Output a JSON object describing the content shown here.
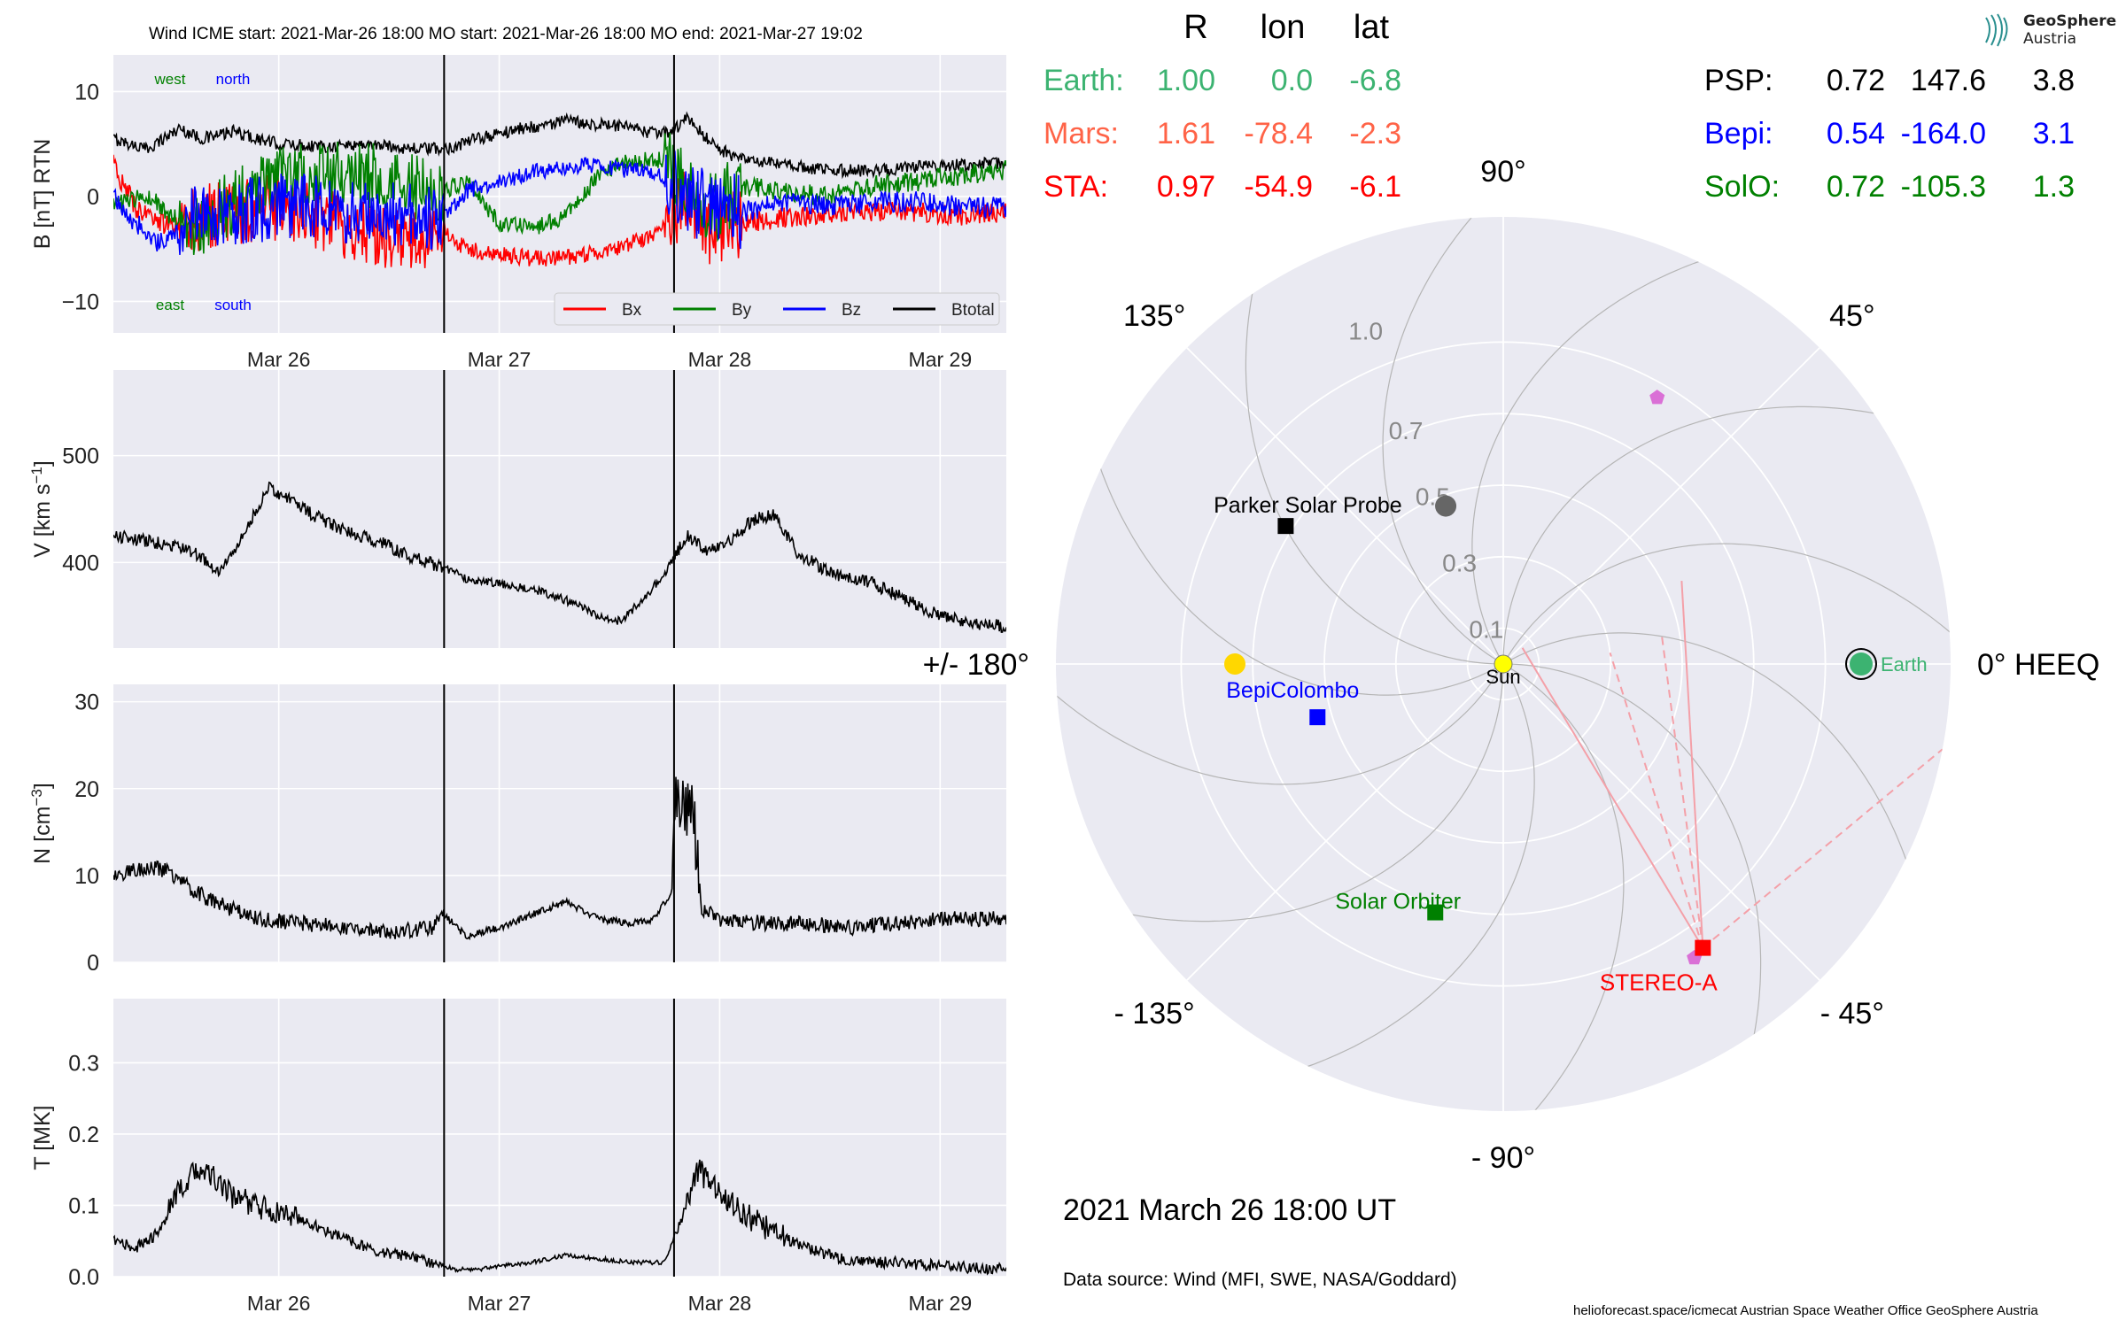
{
  "header": {
    "title": "Wind    ICME start: 2021-Mar-26 18:00   MO start: 2021-Mar-26 18:00   MO end: 2021-Mar-27 19:02",
    "timestamp": "2021 March 26  18:00 UT",
    "data_source": "Data source: Wind (MFI, SWE, NASA/Goddard)",
    "credits": "helioforecast.space/icmecat   Austrian Space Weather Office   GeoSphere Austria",
    "logo_line1": "GeoSphere",
    "logo_line2": "Austria"
  },
  "position_table": {
    "columns": [
      "R",
      "lon",
      "lat"
    ],
    "rows_left": [
      {
        "name": "Earth:",
        "R": "1.00",
        "lon": "0.0",
        "lat": "-6.8",
        "color": "#3cb371"
      },
      {
        "name": "Mars:",
        "R": "1.61",
        "lon": "-78.4",
        "lat": "-2.3",
        "color": "#ff6347"
      },
      {
        "name": "STA:",
        "R": "0.97",
        "lon": "-54.9",
        "lat": "-6.1",
        "color": "#ff0000"
      }
    ],
    "rows_right": [
      {
        "name": "PSP:",
        "R": "0.72",
        "lon": "147.6",
        "lat": "3.8",
        "color": "#000000"
      },
      {
        "name": "Bepi:",
        "R": "0.54",
        "lon": "-164.0",
        "lat": "3.1",
        "color": "#0000ff"
      },
      {
        "name": "SolO:",
        "R": "0.72",
        "lon": "-105.3",
        "lat": "1.3",
        "color": "#008000"
      }
    ]
  },
  "chart_data": [
    {
      "type": "line",
      "ylabel": "B [nT] RTN",
      "ylim": [
        -13,
        13.5
      ],
      "yticks": [
        -10,
        0,
        10
      ],
      "xlim_days": [
        25.25,
        29.3
      ],
      "xticks": [
        {
          "day": 26,
          "label": "Mar 26"
        },
        {
          "day": 27,
          "label": "Mar 27"
        },
        {
          "day": 28,
          "label": "Mar 28"
        },
        {
          "day": 29,
          "label": "Mar 29"
        }
      ],
      "event_lines_days": [
        26.75,
        27.793
      ],
      "annotations": [
        {
          "text": "west",
          "color": "#008000"
        },
        {
          "text": "north",
          "color": "#0000ff"
        },
        {
          "text": "east",
          "color": "#008000"
        },
        {
          "text": "south",
          "color": "#0000ff"
        }
      ],
      "legend": {
        "position": "lower right",
        "entries": [
          {
            "name": "Bx",
            "color": "#ff0000"
          },
          {
            "name": "By",
            "color": "#008000"
          },
          {
            "name": "Bz",
            "color": "#0000ff"
          },
          {
            "name": "Btotal",
            "color": "#000000"
          }
        ]
      },
      "series": [
        {
          "name": "Btotal",
          "color": "#000000",
          "x": [
            25.25,
            25.4,
            25.55,
            25.65,
            25.72,
            25.8,
            25.9,
            26.0,
            26.2,
            26.4,
            26.6,
            26.75,
            26.9,
            27.0,
            27.1,
            27.2,
            27.3,
            27.4,
            27.5,
            27.6,
            27.7,
            27.79,
            27.85,
            27.92,
            28.0,
            28.1,
            28.3,
            28.5,
            28.7,
            28.9,
            29.1,
            29.3
          ],
          "y": [
            5.5,
            4.5,
            6.5,
            5.5,
            5.8,
            6.2,
            5.5,
            5.0,
            4.8,
            5.0,
            4.6,
            4.5,
            5.5,
            6.0,
            6.5,
            6.8,
            7.2,
            7.0,
            6.8,
            6.5,
            6.0,
            6.2,
            7.5,
            6.0,
            4.5,
            3.5,
            3.0,
            2.5,
            2.5,
            2.8,
            3.0,
            3.2
          ]
        },
        {
          "name": "Bx",
          "color": "#ff0000",
          "x": [
            25.25,
            25.35,
            25.45,
            25.55,
            25.65,
            25.8,
            26.0,
            26.2,
            26.4,
            26.6,
            26.75,
            26.85,
            27.0,
            27.2,
            27.4,
            27.6,
            27.75,
            27.85,
            27.95,
            28.1,
            28.3,
            28.5,
            28.7,
            28.9,
            29.1,
            29.3
          ],
          "y": [
            3.0,
            -1.0,
            -2.5,
            -3.0,
            -2.0,
            -1.5,
            -1.0,
            -2.0,
            -3.5,
            -4.0,
            -3.5,
            -5.0,
            -5.5,
            -6.0,
            -5.5,
            -4.5,
            -3.0,
            0.0,
            -3.0,
            -2.5,
            -2.0,
            -1.5,
            -1.5,
            -1.5,
            -1.8,
            -1.5
          ]
        },
        {
          "name": "By",
          "color": "#008000",
          "x": [
            25.25,
            25.4,
            25.55,
            25.65,
            25.75,
            25.9,
            26.0,
            26.15,
            26.3,
            26.45,
            26.6,
            26.75,
            26.85,
            27.0,
            27.15,
            27.3,
            27.45,
            27.6,
            27.75,
            27.85,
            27.95,
            28.1,
            28.3,
            28.5,
            28.7,
            28.9,
            29.1,
            29.3
          ],
          "y": [
            -1.0,
            0.0,
            -2.5,
            -3.0,
            -1.0,
            0.5,
            1.5,
            2.5,
            2.0,
            2.0,
            1.0,
            0.5,
            1.5,
            -2.5,
            -3.0,
            -2.0,
            2.0,
            3.5,
            3.5,
            1.0,
            -1.5,
            1.0,
            0.5,
            0.0,
            1.0,
            1.5,
            2.0,
            2.5
          ]
        },
        {
          "name": "Bz",
          "color": "#0000ff",
          "x": [
            25.25,
            25.35,
            25.45,
            25.55,
            25.65,
            25.8,
            26.0,
            26.2,
            26.4,
            26.6,
            26.75,
            26.85,
            27.0,
            27.2,
            27.4,
            27.6,
            27.75,
            27.85,
            27.95,
            28.1,
            28.3,
            28.5,
            28.7,
            28.9,
            29.1,
            29.3
          ],
          "y": [
            0.0,
            -2.5,
            -4.5,
            -3.5,
            -1.5,
            -1.5,
            -1.0,
            -1.0,
            -1.5,
            -1.5,
            -2.0,
            0.5,
            1.5,
            2.5,
            3.0,
            2.5,
            2.0,
            0.0,
            -1.0,
            -1.5,
            -0.5,
            -1.0,
            -0.5,
            -0.5,
            -1.0,
            -1.0
          ]
        }
      ]
    },
    {
      "type": "line",
      "ylabel": "V [km s$^{-1}$]",
      "ylim": [
        320,
        580
      ],
      "yticks": [
        400,
        500
      ],
      "xlim_days": [
        25.25,
        29.3
      ],
      "event_lines_days": [
        26.75,
        27.793
      ],
      "series": [
        {
          "name": "V",
          "color": "#000000",
          "x": [
            25.25,
            25.4,
            25.55,
            25.65,
            25.72,
            25.8,
            25.9,
            25.95,
            26.05,
            26.15,
            26.3,
            26.45,
            26.6,
            26.75,
            26.85,
            27.0,
            27.15,
            27.3,
            27.45,
            27.55,
            27.65,
            27.75,
            27.85,
            27.95,
            28.05,
            28.15,
            28.25,
            28.35,
            28.5,
            28.7,
            28.9,
            29.0,
            29.1,
            29.3
          ],
          "y": [
            425,
            420,
            415,
            405,
            390,
            410,
            450,
            470,
            460,
            445,
            430,
            420,
            405,
            395,
            385,
            380,
            375,
            365,
            350,
            345,
            365,
            390,
            425,
            410,
            420,
            440,
            445,
            410,
            390,
            380,
            360,
            350,
            345,
            340
          ]
        }
      ]
    },
    {
      "type": "line",
      "ylabel": "N [cm$^{-3}$]",
      "ylim": [
        0,
        32
      ],
      "yticks": [
        0,
        10,
        20,
        30
      ],
      "xlim_days": [
        25.25,
        29.3
      ],
      "event_lines_days": [
        26.75,
        27.793
      ],
      "series": [
        {
          "name": "N",
          "color": "#000000",
          "x": [
            25.25,
            25.4,
            25.5,
            25.6,
            25.7,
            25.8,
            25.9,
            26.1,
            26.3,
            26.5,
            26.7,
            26.75,
            26.85,
            27.0,
            27.1,
            27.2,
            27.3,
            27.45,
            27.6,
            27.7,
            27.78,
            27.8,
            27.84,
            27.88,
            27.92,
            28.0,
            28.2,
            28.4,
            28.6,
            28.8,
            29.0,
            29.3
          ],
          "y": [
            10,
            11,
            10.5,
            8.5,
            7,
            6,
            5,
            4.5,
            4,
            3.5,
            4,
            5.5,
            3,
            4,
            5,
            6,
            7,
            5,
            4.5,
            5,
            8,
            20,
            18,
            17,
            6,
            5,
            4.5,
            4.5,
            4,
            4.5,
            5,
            5
          ]
        }
      ]
    },
    {
      "type": "line",
      "ylabel": "T [MK]",
      "ylim": [
        0,
        0.39
      ],
      "yticks": [
        0.0,
        0.1,
        0.2,
        0.3
      ],
      "xlim_days": [
        25.25,
        29.3
      ],
      "xticks": [
        {
          "day": 26,
          "label": "Mar 26"
        },
        {
          "day": 27,
          "label": "Mar 27"
        },
        {
          "day": 28,
          "label": "Mar 28"
        },
        {
          "day": 29,
          "label": "Mar 29"
        }
      ],
      "event_lines_days": [
        26.75,
        27.793
      ],
      "series": [
        {
          "name": "T",
          "color": "#000000",
          "x": [
            25.25,
            25.35,
            25.45,
            25.55,
            25.62,
            25.7,
            25.8,
            25.9,
            26.0,
            26.1,
            26.25,
            26.4,
            26.55,
            26.7,
            26.8,
            26.9,
            27.0,
            27.15,
            27.3,
            27.45,
            27.6,
            27.75,
            27.85,
            27.9,
            28.0,
            28.1,
            28.25,
            28.4,
            28.6,
            28.8,
            29.0,
            29.3
          ],
          "y": [
            0.05,
            0.04,
            0.06,
            0.12,
            0.15,
            0.14,
            0.11,
            0.1,
            0.09,
            0.08,
            0.06,
            0.04,
            0.03,
            0.02,
            0.01,
            0.01,
            0.015,
            0.02,
            0.03,
            0.025,
            0.02,
            0.02,
            0.1,
            0.15,
            0.12,
            0.09,
            0.06,
            0.04,
            0.02,
            0.02,
            0.015,
            0.01
          ]
        }
      ]
    },
    {
      "type": "scatter",
      "subtype": "polar",
      "angular_labels": [
        {
          "deg": 0,
          "text": "0° HEEQ"
        },
        {
          "deg": 45,
          "text": "45°"
        },
        {
          "deg": 90,
          "text": "90°"
        },
        {
          "deg": 135,
          "text": "135°"
        },
        {
          "deg": 180,
          "text": "+/- 180°"
        },
        {
          "deg": -135,
          "text": "- 135°"
        },
        {
          "deg": -90,
          "text": "- 90°"
        },
        {
          "deg": -45,
          "text": "- 45°"
        }
      ],
      "radial_ticks": [
        {
          "r": 0.1,
          "label": "0.1"
        },
        {
          "r": 0.3,
          "label": "0.3"
        },
        {
          "r": 0.5,
          "label": "0.5"
        },
        {
          "r": 0.7,
          "label": "0.7"
        },
        {
          "r": 1.0,
          "label": "1.0"
        }
      ],
      "radial_grid": [
        0.1,
        0.3,
        0.5,
        0.7,
        0.9
      ],
      "rmax": 1.25,
      "bodies": [
        {
          "name": "Sun",
          "r": 0.0,
          "lon": 0,
          "marker": "circle",
          "color": "#ffff00",
          "label_color": "#000000"
        },
        {
          "name": "Earth",
          "r": 1.0,
          "lon": 0.0,
          "marker": "circle-ringed",
          "color": "#3cb371",
          "label_color": "#3cb371"
        },
        {
          "name": "STEREO-A",
          "r": 0.97,
          "lon": -54.9,
          "marker": "square",
          "color": "#ff0000",
          "label_color": "#ff0000"
        },
        {
          "name": "Parker Solar Probe",
          "r": 0.72,
          "lon": 147.6,
          "marker": "square",
          "color": "#000000",
          "label_color": "#000000"
        },
        {
          "name": "BepiColombo",
          "r": 0.54,
          "lon": -164.0,
          "marker": "square",
          "color": "#0000ff",
          "label_color": "#0000ff"
        },
        {
          "name": "Solar Orbiter",
          "r": 0.72,
          "lon": -105.3,
          "marker": "square",
          "color": "#008000",
          "label_color": "#008000"
        }
      ],
      "other_markers": [
        {
          "note": "Mars",
          "r": 0.75,
          "lon": 180,
          "marker": "circle",
          "color": "#ffd700"
        },
        {
          "note": "Mercury",
          "r": 0.47,
          "lon": 110,
          "marker": "circle",
          "color": "#666666"
        },
        {
          "note": "Venus",
          "r": 0.86,
          "lon": 60,
          "marker": "pentagon",
          "color": "#da70d6"
        },
        {
          "note": "Venus2",
          "r": 0.98,
          "lon": -57,
          "marker": "pentagon",
          "color": "#da70d6"
        }
      ],
      "sta_lines": [
        {
          "to_r": 0.07,
          "to_lon": 40,
          "style": "solid"
        },
        {
          "to_r": 0.55,
          "to_lon": 25,
          "style": "solid"
        },
        {
          "to_r": 0.3,
          "to_lon": 6,
          "style": "dashed"
        },
        {
          "to_r": 0.45,
          "to_lon": 10,
          "style": "dashed"
        },
        {
          "to_r": 1.25,
          "to_lon": -11,
          "style": "dashed"
        }
      ]
    }
  ]
}
